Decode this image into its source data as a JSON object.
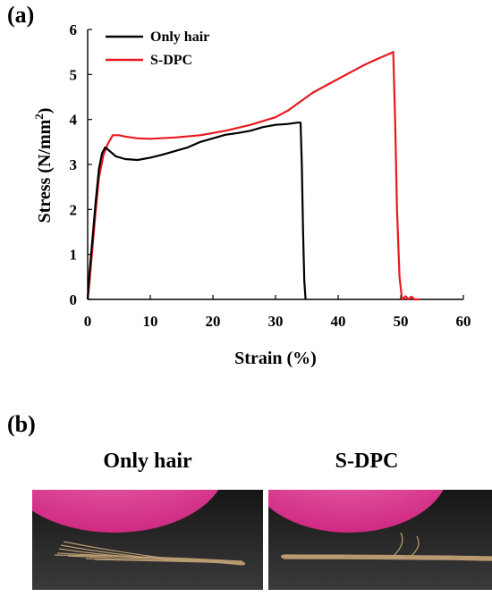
{
  "panels": {
    "a": "(a)",
    "b": "(b)"
  },
  "chart_data": {
    "type": "line",
    "title": "",
    "xlabel": "Strain (%)",
    "ylabel_text": "Stress (N/mm",
    "ylabel_sup": "2",
    "ylabel_close": ")",
    "xlim": [
      0,
      60
    ],
    "ylim": [
      0,
      6
    ],
    "xticks": [
      "0",
      "10",
      "20",
      "30",
      "40",
      "50",
      "60"
    ],
    "yticks": [
      "0",
      "1",
      "2",
      "3",
      "4",
      "5",
      "6"
    ],
    "grid": false,
    "legend_position": "top-left",
    "series": [
      {
        "name": "Only hair",
        "color": "#000000",
        "points": [
          [
            0,
            0
          ],
          [
            0.3,
            0.6
          ],
          [
            0.8,
            1.4
          ],
          [
            1.3,
            2.2
          ],
          [
            1.8,
            2.9
          ],
          [
            2.3,
            3.25
          ],
          [
            2.8,
            3.38
          ],
          [
            3.5,
            3.3
          ],
          [
            4.5,
            3.18
          ],
          [
            6,
            3.12
          ],
          [
            8,
            3.1
          ],
          [
            10,
            3.15
          ],
          [
            12,
            3.22
          ],
          [
            14,
            3.3
          ],
          [
            16,
            3.38
          ],
          [
            18,
            3.5
          ],
          [
            20,
            3.58
          ],
          [
            22,
            3.66
          ],
          [
            24,
            3.7
          ],
          [
            26,
            3.75
          ],
          [
            28,
            3.83
          ],
          [
            30,
            3.88
          ],
          [
            32,
            3.9
          ],
          [
            33.5,
            3.93
          ],
          [
            34,
            3.93
          ],
          [
            34.2,
            3.0
          ],
          [
            34.4,
            1.5
          ],
          [
            34.6,
            0.4
          ],
          [
            34.8,
            0
          ]
        ]
      },
      {
        "name": "S-DPC",
        "color": "#e8191e",
        "points": [
          [
            0,
            0
          ],
          [
            0.3,
            0.4
          ],
          [
            0.8,
            1.2
          ],
          [
            1.3,
            2.0
          ],
          [
            1.8,
            2.7
          ],
          [
            2.5,
            3.2
          ],
          [
            3.2,
            3.45
          ],
          [
            4,
            3.65
          ],
          [
            5,
            3.65
          ],
          [
            6,
            3.62
          ],
          [
            8,
            3.58
          ],
          [
            10,
            3.57
          ],
          [
            14,
            3.6
          ],
          [
            18,
            3.65
          ],
          [
            22,
            3.75
          ],
          [
            26,
            3.88
          ],
          [
            30,
            4.05
          ],
          [
            32,
            4.2
          ],
          [
            34,
            4.4
          ],
          [
            36,
            4.6
          ],
          [
            38,
            4.75
          ],
          [
            40,
            4.9
          ],
          [
            42,
            5.05
          ],
          [
            44,
            5.2
          ],
          [
            46,
            5.33
          ],
          [
            48,
            5.45
          ],
          [
            48.8,
            5.5
          ],
          [
            49.1,
            4.0
          ],
          [
            49.4,
            2.0
          ],
          [
            49.8,
            0.5
          ],
          [
            50.2,
            0
          ],
          [
            50.8,
            0.07
          ],
          [
            51.2,
            0
          ],
          [
            51.7,
            0.06
          ],
          [
            52.2,
            0
          ],
          [
            53,
            0
          ]
        ]
      }
    ]
  },
  "photos": {
    "left_title": "Only hair",
    "right_title": "S-DPC",
    "balloon_color": "#e33f95",
    "background_color": "#2a2a2a"
  }
}
